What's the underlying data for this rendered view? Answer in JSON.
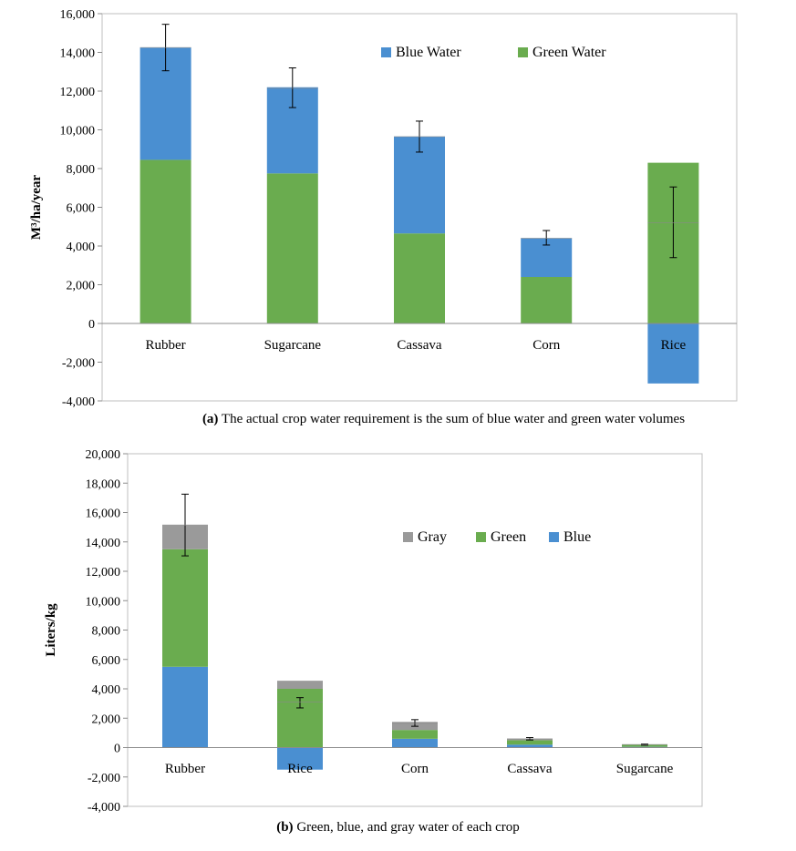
{
  "chart_data": [
    {
      "type": "bar",
      "stacked": true,
      "title": "",
      "xlabel": "",
      "ylabel": "M³/ha/year",
      "ylim": [
        -4000,
        16000
      ],
      "yticks": [
        -4000,
        -2000,
        0,
        2000,
        4000,
        6000,
        8000,
        10000,
        12000,
        14000,
        16000
      ],
      "ytick_labels": [
        "-4,000",
        "-2,000",
        "0",
        "2,000",
        "4,000",
        "6,000",
        "8,000",
        "10,000",
        "12,000",
        "14,000",
        "16,000"
      ],
      "categories": [
        "Rubber",
        "Sugarcane",
        "Cassava",
        "Corn",
        "Rice"
      ],
      "series": [
        {
          "name": "Green Water",
          "color": "#6aac4f",
          "values": [
            8450,
            7750,
            4650,
            2400,
            8300
          ]
        },
        {
          "name": "Blue Water",
          "color": "#4a8fd1",
          "values": [
            5800,
            4450,
            5000,
            2000,
            -3100
          ]
        }
      ],
      "error_bars": [
        {
          "center": 14250,
          "low": 13050,
          "high": 15450
        },
        {
          "center": 12150,
          "low": 11150,
          "high": 13200
        },
        {
          "center": 9650,
          "low": 8850,
          "high": 10450
        },
        {
          "center": 4400,
          "low": 4050,
          "high": 4800
        },
        {
          "center": 5200,
          "low": 3400,
          "high": 7050
        }
      ],
      "legend": {
        "placement": "top-right",
        "order": [
          "Blue Water",
          "Green Water"
        ]
      },
      "grid": false,
      "caption_prefix": "(a)",
      "caption": "The actual crop water requirement is the sum of blue water and green water volumes"
    },
    {
      "type": "bar",
      "stacked": true,
      "title": "",
      "xlabel": "",
      "ylabel": "Liters/kg",
      "ylim": [
        -4000,
        20000
      ],
      "yticks": [
        -4000,
        -2000,
        0,
        2000,
        4000,
        6000,
        8000,
        10000,
        12000,
        14000,
        16000,
        18000,
        20000
      ],
      "ytick_labels": [
        "-4,000",
        "-2,000",
        "0",
        "2,000",
        "4,000",
        "6,000",
        "8,000",
        "10,000",
        "12,000",
        "14,000",
        "16,000",
        "18,000",
        "20,000"
      ],
      "categories": [
        "Rubber",
        "Rice",
        "Corn",
        "Cassava",
        "Sugarcane"
      ],
      "series": [
        {
          "name": "Blue",
          "color": "#4a8fd1",
          "values": [
            5500,
            -1500,
            600,
            200,
            50
          ]
        },
        {
          "name": "Green",
          "color": "#6aac4f",
          "values": [
            8000,
            4000,
            600,
            300,
            150
          ]
        },
        {
          "name": "Gray",
          "color": "#9a9a9a",
          "values": [
            1650,
            550,
            550,
            100,
            20
          ]
        }
      ],
      "error_bars": [
        {
          "center": 15150,
          "low": 13050,
          "high": 17250
        },
        {
          "center": 3100,
          "low": 2700,
          "high": 3400
        },
        {
          "center": 1650,
          "low": 1450,
          "high": 1900
        },
        {
          "center": 600,
          "low": 520,
          "high": 680
        },
        {
          "center": 200,
          "low": 160,
          "high": 240
        }
      ],
      "legend": {
        "placement": "top-right",
        "order": [
          "Gray",
          "Green",
          "Blue"
        ]
      },
      "grid": false,
      "caption_prefix": "(b)",
      "caption": "Green, blue, and gray water of each crop"
    }
  ]
}
